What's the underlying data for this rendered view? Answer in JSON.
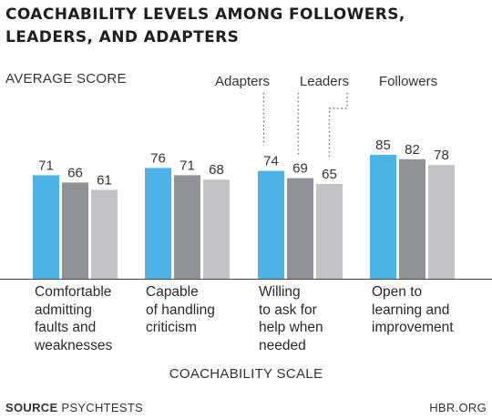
{
  "title_line1": "COACHABILITY LEVELS AMONG FOLLOWERS,",
  "title_line2": "LEADERS, AND ADAPTERS",
  "source_label": "SOURCE",
  "source_text": "PSYCHTESTS",
  "publisher": "HBR.ORG",
  "colors": {
    "Adapters": "#4db3e6",
    "Leaders": "#8e9195",
    "Followers": "#c1c3c6"
  },
  "chart_data": {
    "type": "bar",
    "title": "COACHABILITY LEVELS AMONG FOLLOWERS, LEADERS, AND ADAPTERS",
    "ylabel": "AVERAGE SCORE",
    "xlabel": "COACHABILITY SCALE",
    "ylim": [
      0,
      100
    ],
    "grid": false,
    "legend": "annotated above third group",
    "categories": [
      "Comfortable\nadmitting\nfaults and\nweaknesses",
      "Capable\nof handling\ncriticism",
      "Willing\nto ask for\nhelp when\nneeded",
      "Open to\nlearning and\nimprovement"
    ],
    "series": [
      {
        "name": "Adapters",
        "values": [
          71,
          76,
          74,
          85
        ]
      },
      {
        "name": "Leaders",
        "values": [
          66,
          71,
          69,
          82
        ]
      },
      {
        "name": "Followers",
        "values": [
          61,
          68,
          65,
          78
        ]
      }
    ]
  }
}
